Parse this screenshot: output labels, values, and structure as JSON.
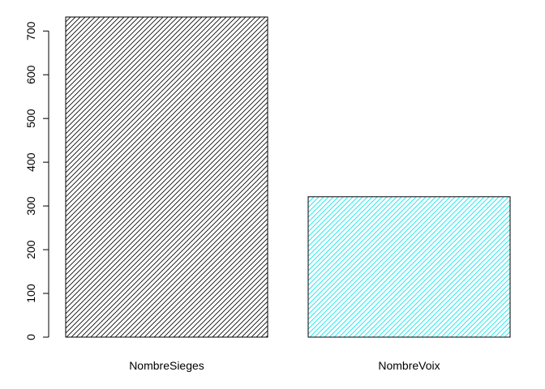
{
  "chart_data": {
    "type": "bar",
    "categories": [
      "NombreSieges",
      "NombreVoix"
    ],
    "values": [
      732,
      321
    ],
    "colors": [
      "#000000",
      "#00e5ee"
    ],
    "fill_pattern": "diagonal-hatch",
    "title": "",
    "xlabel": "",
    "ylabel": "",
    "ylim": [
      0,
      732
    ],
    "yticks": [
      0,
      100,
      200,
      300,
      400,
      500,
      600,
      700
    ],
    "grid": false,
    "legend": "none"
  }
}
